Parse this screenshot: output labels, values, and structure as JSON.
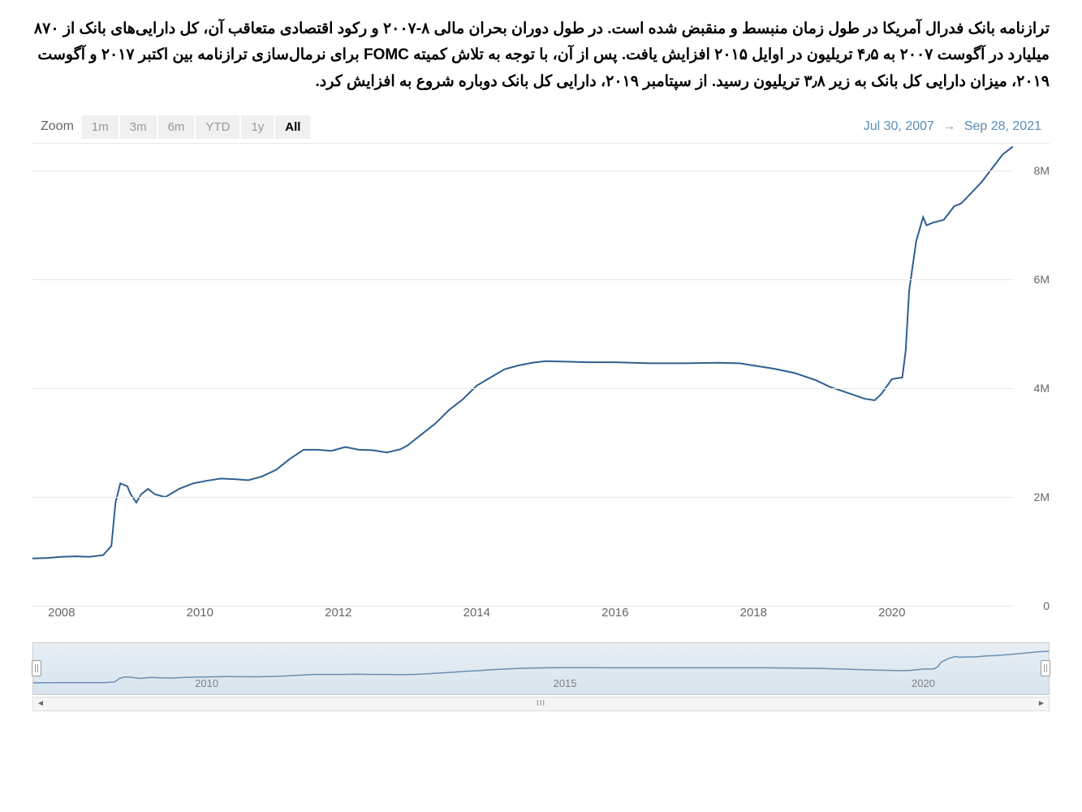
{
  "description": "ترازنامه بانک فدرال آمریکا در طول زمان منبسط و منقبض شده است. در طول دوران بحران مالی ۸-۲۰۰۷ و رکود اقتصادی متعاقب آن، کل دارایی‌های بانک از ۸۷۰ میلیارد در آگوست ۲۰۰۷ به ۴٫۵ تریلیون در اوایل ۲۰۱۵ افزایش یافت. پس از آن، با توجه به تلاش کمیته FOMC برای نرمال‌سازی ترازنامه بین اکتبر ۲۰۱۷ و آگوست ۲۰۱۹، میزان دارایی کل بانک به زیر ۳٫۸ تریلیون رسید. از سپتامبر ۲۰۱۹، دارایی کل بانک دوباره شروع به افزایش کرد.",
  "toolbar": {
    "zoom_label": "Zoom",
    "buttons": [
      {
        "label": "1m",
        "active": false
      },
      {
        "label": "3m",
        "active": false
      },
      {
        "label": "6m",
        "active": false
      },
      {
        "label": "YTD",
        "active": false
      },
      {
        "label": "1y",
        "active": false
      },
      {
        "label": "All",
        "active": true
      }
    ],
    "date_from": "Jul 30, 2007",
    "date_arrow": "→",
    "date_to": "Sep 28, 2021"
  },
  "chart": {
    "type": "line",
    "line_color": "#2f5f8f",
    "line_width": 2,
    "grid_color": "#e8e8e8",
    "background_color": "#ffffff",
    "ylim": [
      0,
      8500000
    ],
    "xlim": [
      2007.58,
      2021.75
    ],
    "y_ticks": [
      {
        "v": 0,
        "label": "0"
      },
      {
        "v": 2000000,
        "label": "2M"
      },
      {
        "v": 4000000,
        "label": "4M"
      },
      {
        "v": 6000000,
        "label": "6M"
      },
      {
        "v": 8000000,
        "label": "8M"
      }
    ],
    "x_ticks": [
      {
        "v": 2008,
        "label": "2008"
      },
      {
        "v": 2010,
        "label": "2010"
      },
      {
        "v": 2012,
        "label": "2012"
      },
      {
        "v": 2014,
        "label": "2014"
      },
      {
        "v": 2016,
        "label": "2016"
      },
      {
        "v": 2018,
        "label": "2018"
      },
      {
        "v": 2020,
        "label": "2020"
      }
    ],
    "series": [
      {
        "x": 2007.58,
        "y": 870000
      },
      {
        "x": 2007.8,
        "y": 880000
      },
      {
        "x": 2008.0,
        "y": 900000
      },
      {
        "x": 2008.2,
        "y": 910000
      },
      {
        "x": 2008.4,
        "y": 900000
      },
      {
        "x": 2008.6,
        "y": 930000
      },
      {
        "x": 2008.72,
        "y": 1100000
      },
      {
        "x": 2008.78,
        "y": 1900000
      },
      {
        "x": 2008.85,
        "y": 2250000
      },
      {
        "x": 2008.95,
        "y": 2200000
      },
      {
        "x": 2009.0,
        "y": 2050000
      },
      {
        "x": 2009.08,
        "y": 1900000
      },
      {
        "x": 2009.15,
        "y": 2050000
      },
      {
        "x": 2009.25,
        "y": 2150000
      },
      {
        "x": 2009.35,
        "y": 2050000
      },
      {
        "x": 2009.5,
        "y": 2000000
      },
      {
        "x": 2009.7,
        "y": 2150000
      },
      {
        "x": 2009.9,
        "y": 2250000
      },
      {
        "x": 2010.1,
        "y": 2300000
      },
      {
        "x": 2010.3,
        "y": 2340000
      },
      {
        "x": 2010.5,
        "y": 2330000
      },
      {
        "x": 2010.7,
        "y": 2310000
      },
      {
        "x": 2010.9,
        "y": 2380000
      },
      {
        "x": 2011.1,
        "y": 2500000
      },
      {
        "x": 2011.3,
        "y": 2700000
      },
      {
        "x": 2011.5,
        "y": 2870000
      },
      {
        "x": 2011.7,
        "y": 2870000
      },
      {
        "x": 2011.9,
        "y": 2850000
      },
      {
        "x": 2012.1,
        "y": 2920000
      },
      {
        "x": 2012.3,
        "y": 2870000
      },
      {
        "x": 2012.5,
        "y": 2860000
      },
      {
        "x": 2012.7,
        "y": 2820000
      },
      {
        "x": 2012.9,
        "y": 2880000
      },
      {
        "x": 2013.0,
        "y": 2950000
      },
      {
        "x": 2013.2,
        "y": 3150000
      },
      {
        "x": 2013.4,
        "y": 3350000
      },
      {
        "x": 2013.6,
        "y": 3600000
      },
      {
        "x": 2013.8,
        "y": 3800000
      },
      {
        "x": 2014.0,
        "y": 4050000
      },
      {
        "x": 2014.2,
        "y": 4200000
      },
      {
        "x": 2014.4,
        "y": 4350000
      },
      {
        "x": 2014.6,
        "y": 4420000
      },
      {
        "x": 2014.8,
        "y": 4470000
      },
      {
        "x": 2015.0,
        "y": 4500000
      },
      {
        "x": 2015.3,
        "y": 4490000
      },
      {
        "x": 2015.6,
        "y": 4480000
      },
      {
        "x": 2016.0,
        "y": 4480000
      },
      {
        "x": 2016.5,
        "y": 4460000
      },
      {
        "x": 2017.0,
        "y": 4460000
      },
      {
        "x": 2017.5,
        "y": 4470000
      },
      {
        "x": 2017.8,
        "y": 4460000
      },
      {
        "x": 2018.0,
        "y": 4420000
      },
      {
        "x": 2018.3,
        "y": 4360000
      },
      {
        "x": 2018.6,
        "y": 4280000
      },
      {
        "x": 2018.9,
        "y": 4150000
      },
      {
        "x": 2019.1,
        "y": 4030000
      },
      {
        "x": 2019.4,
        "y": 3900000
      },
      {
        "x": 2019.6,
        "y": 3810000
      },
      {
        "x": 2019.75,
        "y": 3780000
      },
      {
        "x": 2019.85,
        "y": 3900000
      },
      {
        "x": 2020.0,
        "y": 4170000
      },
      {
        "x": 2020.15,
        "y": 4200000
      },
      {
        "x": 2020.2,
        "y": 4700000
      },
      {
        "x": 2020.25,
        "y": 5800000
      },
      {
        "x": 2020.35,
        "y": 6700000
      },
      {
        "x": 2020.45,
        "y": 7150000
      },
      {
        "x": 2020.5,
        "y": 7000000
      },
      {
        "x": 2020.6,
        "y": 7050000
      },
      {
        "x": 2020.75,
        "y": 7100000
      },
      {
        "x": 2020.9,
        "y": 7350000
      },
      {
        "x": 2021.0,
        "y": 7400000
      },
      {
        "x": 2021.15,
        "y": 7600000
      },
      {
        "x": 2021.3,
        "y": 7800000
      },
      {
        "x": 2021.45,
        "y": 8050000
      },
      {
        "x": 2021.6,
        "y": 8300000
      },
      {
        "x": 2021.75,
        "y": 8450000
      }
    ]
  },
  "navigator": {
    "line_color": "#6a8fb0",
    "bg_top": "#e8eff5",
    "bg_bottom": "#d8e4ee",
    "x_labels": [
      {
        "v": 2010,
        "label": "2010"
      },
      {
        "v": 2015,
        "label": "2015"
      },
      {
        "v": 2020,
        "label": "2020"
      }
    ]
  },
  "scrollbar": {
    "left_arrow": "◄",
    "right_arrow": "►",
    "grip": "III"
  }
}
